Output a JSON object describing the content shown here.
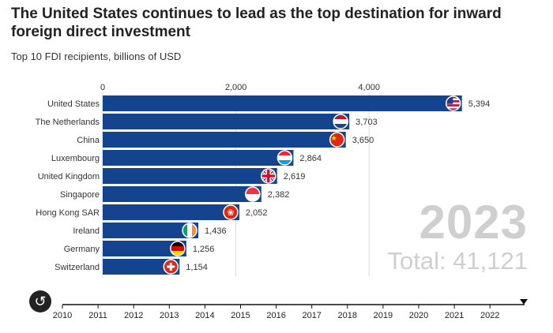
{
  "header": {
    "title": "The United States continues to lead as the top destination for inward foreign direct investment",
    "subtitle": "Top 10 FDI recipients, billions of USD"
  },
  "overlay": {
    "year": "2023",
    "total": "Total: 41,121"
  },
  "controls": {
    "replay_icon": "replay-icon"
  },
  "colors": {
    "bar": "#15448f",
    "gridline": "#d9d9d9",
    "label": "#333333"
  },
  "chart_data": {
    "type": "bar",
    "orientation": "horizontal",
    "categories": [
      "United States",
      "The Netherlands",
      "China",
      "Luxembourg",
      "United Kingdom",
      "Singapore",
      "Hong Kong SAR",
      "Ireland",
      "Germany",
      "Switzerland"
    ],
    "values": [
      5394,
      3703,
      3650,
      2864,
      2619,
      2382,
      2052,
      1436,
      1256,
      1154
    ],
    "value_labels": [
      "5,394",
      "3,703",
      "3,650",
      "2,864",
      "2,619",
      "2,382",
      "2,052",
      "1,436",
      "1,256",
      "1,154"
    ],
    "flags": [
      "us",
      "nl",
      "cn",
      "lu",
      "gb",
      "sg",
      "hk",
      "ie",
      "de",
      "ch"
    ],
    "x_ticks": [
      0,
      2000,
      4000
    ],
    "x_tick_labels": [
      "0",
      "2,000",
      "4,000"
    ],
    "xlim": [
      0,
      5394
    ],
    "grid": true,
    "timeline": {
      "years": [
        "2010",
        "2011",
        "2012",
        "2013",
        "2014",
        "2015",
        "2016",
        "2017",
        "2018",
        "2019",
        "2020",
        "2021",
        "2022"
      ],
      "current": "2023"
    }
  }
}
